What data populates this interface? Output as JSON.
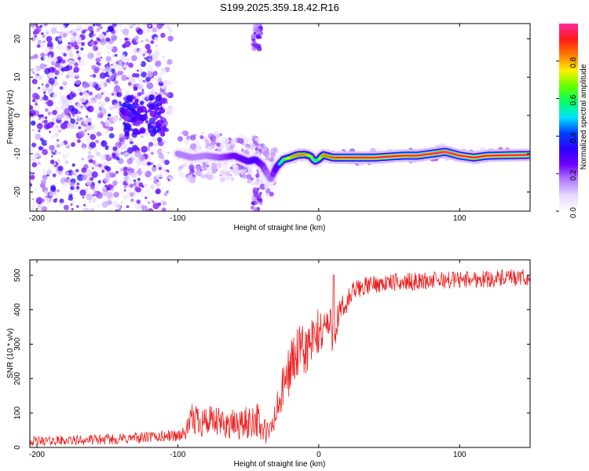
{
  "figure": {
    "title": "S199.2025.359.18.42.R16"
  },
  "chart_data": [
    {
      "type": "heatmap",
      "name": "spectrogram",
      "xlabel": "Height of straight line (km)",
      "ylabel": "Frequency (Hz)",
      "xlim": [
        -205,
        150
      ],
      "ylim": [
        -25,
        24
      ],
      "xticks": [
        -200,
        -100,
        0,
        100
      ],
      "yticks": [
        -20,
        -10,
        0,
        10,
        20
      ],
      "colorbar": {
        "label": "Normalized spectral amplitude",
        "range": [
          0,
          1
        ],
        "ticks": [
          "0.0",
          "0.2",
          "0.4",
          "0.6",
          "0.8"
        ],
        "tick_values": [
          0,
          0.2,
          0.4,
          0.6,
          0.8
        ],
        "colormap": [
          "#ffffff",
          "#e6d8ff",
          "#b37cff",
          "#7000ff",
          "#2a00ff",
          "#0040ff",
          "#00e5ff",
          "#00ff60",
          "#66ff00",
          "#ffee00",
          "#ff7a00",
          "#ff1a1a",
          "#ff2aa0"
        ]
      },
      "signal_line": {
        "description": "dominant narrowband component, frequency (Hz) versus height (km)",
        "x": [
          -100,
          -90,
          -80,
          -70,
          -60,
          -50,
          -45,
          -40,
          -37,
          -34,
          -30,
          -25,
          -20,
          -15,
          -10,
          -6,
          -3,
          0,
          3,
          6,
          10,
          20,
          40,
          60,
          70,
          80,
          90,
          100,
          110,
          120,
          150
        ],
        "y": [
          -10,
          -11,
          -10.5,
          -11,
          -10.5,
          -12,
          -11.5,
          -13,
          -15,
          -16.5,
          -13.5,
          -11.5,
          -11,
          -10.3,
          -10.2,
          -10.5,
          -12,
          -11.5,
          -10.3,
          -10.6,
          -11,
          -11,
          -11,
          -10.5,
          -10.5,
          -10,
          -9.5,
          -10.5,
          -11,
          -10.5,
          -10.3
        ],
        "amplitude": [
          0.3,
          0.3,
          0.3,
          0.35,
          0.45,
          0.5,
          0.55,
          0.45,
          0.35,
          0.3,
          0.5,
          0.6,
          0.75,
          0.8,
          0.8,
          0.7,
          0.6,
          0.6,
          0.8,
          0.8,
          0.85,
          0.9,
          0.9,
          0.9,
          0.92,
          0.92,
          0.95,
          0.92,
          0.9,
          0.9,
          0.9
        ]
      }
    },
    {
      "type": "line",
      "name": "snr",
      "xlabel": "Height of straight line (km)",
      "ylabel": "SNR (10 * v/v)",
      "xlim": [
        -205,
        150
      ],
      "ylim": [
        0,
        545
      ],
      "xticks": [
        -200,
        -100,
        0,
        100
      ],
      "yticks": [
        0,
        100,
        200,
        300,
        400,
        500
      ],
      "series": [
        {
          "name": "SNR",
          "color": "#ee2222",
          "x": [
            -205,
            -180,
            -160,
            -140,
            -120,
            -100,
            -95,
            -90,
            -85,
            -80,
            -70,
            -60,
            -50,
            -45,
            -40,
            -35,
            -30,
            -25,
            -20,
            -15,
            -10,
            -5,
            0,
            5,
            10,
            15,
            20,
            25,
            30,
            40,
            50,
            60,
            80,
            100,
            120,
            150
          ],
          "y": [
            18,
            20,
            22,
            25,
            30,
            35,
            40,
            80,
            85,
            75,
            70,
            65,
            70,
            90,
            50,
            40,
            100,
            175,
            240,
            270,
            280,
            300,
            330,
            360,
            340,
            380,
            420,
            455,
            465,
            475,
            478,
            480,
            485,
            488,
            490,
            492
          ],
          "noise": [
            14,
            14,
            15,
            16,
            17,
            18,
            20,
            45,
            55,
            48,
            45,
            45,
            50,
            60,
            45,
            35,
            55,
            70,
            80,
            80,
            80,
            80,
            75,
            70,
            65,
            55,
            40,
            30,
            28,
            26,
            26,
            26,
            26,
            26,
            26,
            26
          ]
        }
      ]
    }
  ]
}
